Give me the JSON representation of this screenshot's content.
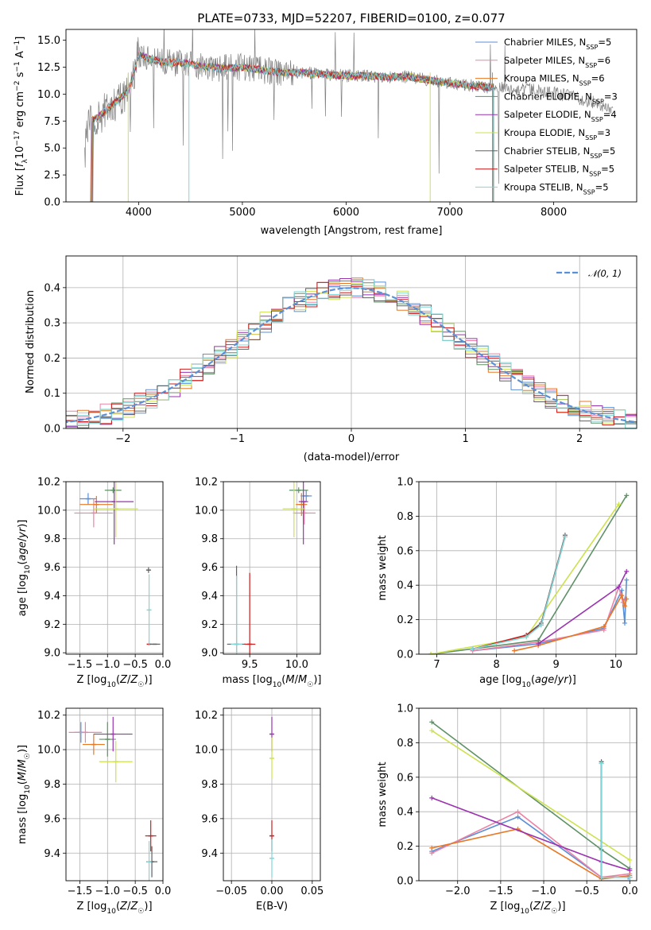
{
  "colors": {
    "Chabrier MILES": "#5b8fd6",
    "Salpeter MILES": "#ee82a4",
    "Kroupa MILES": "#e87826",
    "Chabrier ELODIE": "#5f9166",
    "Salpeter ELODIE": "#9b32b0",
    "Kroupa ELODIE": "#cde24e",
    "Chabrier STELIB": "#606060",
    "Salpeter STELIB": "#cc1f1f",
    "Kroupa STELIB": "#7fd6d8"
  },
  "chart_data": [
    {
      "id": "spectrum",
      "type": "line",
      "title": "PLATE=0733, MJD=52207, FIBERID=0100, z=0.077",
      "xlabel": "wavelength [Angstrom, rest frame]",
      "ylabel": "Flux [fλ10⁻¹⁷ erg cm⁻² s⁻¹ A⁻¹]",
      "xlim": [
        3300,
        8800
      ],
      "ylim": [
        0,
        16
      ],
      "xticks": [
        "4000",
        "5000",
        "6000",
        "7000",
        "8000"
      ],
      "yticks": [
        "0.0",
        "2.5",
        "5.0",
        "7.5",
        "10.0",
        "12.5",
        "15.0"
      ],
      "xtick_values": [
        4000,
        5000,
        6000,
        7000,
        8000
      ],
      "ytick_values": [
        0,
        2.5,
        5,
        7.5,
        10,
        12.5,
        15
      ],
      "legend_position": "right",
      "legend": [
        {
          "label": "Chabrier MILES, N",
          "sub": "SSP",
          "suffix": "=5"
        },
        {
          "label": "Salpeter MILES, N",
          "sub": "SSP",
          "suffix": "=6"
        },
        {
          "label": "Kroupa MILES, N",
          "sub": "SSP",
          "suffix": "=6"
        },
        {
          "label": "Chabrier ELODIE, N",
          "sub": "SSP",
          "suffix": "=3"
        },
        {
          "label": "Salpeter ELODIE, N",
          "sub": "SSP",
          "suffix": "=4"
        },
        {
          "label": "Kroupa ELODIE, N",
          "sub": "SSP",
          "suffix": "=3"
        },
        {
          "label": "Chabrier STELIB, N",
          "sub": "SSP",
          "suffix": "=5"
        },
        {
          "label": "Salpeter STELIB, N",
          "sub": "SSP",
          "suffix": "=5"
        },
        {
          "label": "Kroupa STELIB, N",
          "sub": "SSP",
          "suffix": "=5"
        }
      ],
      "continuum": {
        "x": [
          3500,
          3540,
          3600,
          3700,
          3800,
          3900,
          3950,
          4000,
          4100,
          4200,
          4400,
          4600,
          4800,
          5000,
          5200,
          5400,
          5600,
          5800,
          6000,
          6200,
          6400,
          6600,
          6800,
          7000,
          7200,
          7400,
          7600,
          7800,
          8000,
          8200,
          8400,
          8560
        ],
        "y": [
          6.5,
          7.5,
          7.8,
          8.6,
          9.4,
          10.3,
          11.8,
          13.7,
          13.3,
          13.0,
          12.9,
          12.6,
          12.4,
          12.5,
          12.2,
          12.0,
          12.0,
          11.8,
          11.7,
          11.7,
          11.6,
          11.6,
          11.3,
          11.0,
          10.8,
          10.6,
          10.5,
          10.4,
          10.1,
          9.7,
          9.2,
          8.6
        ]
      },
      "model_range": [
        3520,
        7420
      ],
      "data_range": [
        3480,
        8570
      ],
      "model_dips": [
        [
          4485,
          0
        ],
        [
          3900,
          0
        ],
        [
          6810,
          0
        ],
        [
          7410,
          0
        ]
      ]
    },
    {
      "id": "residual-histogram",
      "type": "histogram",
      "xlabel": "(data-model)/error",
      "ylabel": "Normed distribution",
      "xlim": [
        -2.5,
        2.5
      ],
      "ylim": [
        0,
        0.49
      ],
      "xticks": [
        "−2",
        "−1",
        "0",
        "1",
        "2"
      ],
      "yticks": [
        "0.0",
        "0.1",
        "0.2",
        "0.3",
        "0.4"
      ],
      "xtick_values": [
        -2,
        -1,
        0,
        1,
        2
      ],
      "ytick_values": [
        0,
        0.1,
        0.2,
        0.3,
        0.4
      ],
      "bin_width": 0.1,
      "legend": [
        {
          "label": "𝒩(0, 1)",
          "style": "dashed"
        }
      ],
      "legend_position": "top-right"
    },
    {
      "id": "age-vs-Z",
      "type": "errorbar",
      "xlabel": "Z [log10(Z/Z☉)]",
      "ylabel": "age  [log10(age/yr)]",
      "xlim": [
        -1.75,
        0.0
      ],
      "ylim": [
        8.99,
        10.2
      ],
      "xticks": [
        "−1.5",
        "−1.0",
        "−0.5",
        "0.0"
      ],
      "yticks": [
        "9.0",
        "9.2",
        "9.4",
        "9.6",
        "9.8",
        "10.0",
        "10.2"
      ],
      "xtick_values": [
        -1.5,
        -1.0,
        -0.5,
        0.0
      ],
      "ytick_values": [
        9.0,
        9.2,
        9.4,
        9.6,
        9.8,
        10.0,
        10.2
      ],
      "points": [
        {
          "series": "Chabrier MILES",
          "x": -1.35,
          "y": 10.08,
          "xerr": 0.15,
          "yerr": 0.04
        },
        {
          "series": "Salpeter MILES",
          "x": -1.25,
          "y": 9.98,
          "xerr": 0.35,
          "yerr": 0.1
        },
        {
          "series": "Kroupa MILES",
          "x": -1.2,
          "y": 10.04,
          "xerr": 0.3,
          "yerr": 0.06
        },
        {
          "series": "Chabrier ELODIE",
          "x": -0.9,
          "y": 10.14,
          "xerr": 0.15,
          "yerr": 0.02
        },
        {
          "series": "Salpeter ELODIE",
          "x": -0.88,
          "y": 10.06,
          "xerr": 0.35,
          "yerr": 0.3
        },
        {
          "series": "Kroupa ELODIE",
          "x": -0.85,
          "y": 10.01,
          "xerr": 0.4,
          "yerr": 0.2
        },
        {
          "series": "Chabrier STELIB",
          "x": -0.26,
          "y": 9.58,
          "xerr": 0.0,
          "yerr": 0.02
        },
        {
          "series": "Salpeter STELIB",
          "x": -0.25,
          "y": 9.06,
          "xerr": 0.0,
          "yerr": 0.0
        },
        {
          "series": "Kroupa STELIB",
          "x": -0.25,
          "y": 9.3,
          "xerr": 0.0,
          "yerr": 0.25
        },
        {
          "series": "Chabrier STELIB",
          "x": -0.15,
          "y": 9.06,
          "xerr": 0.1,
          "yerr": 0.0
        }
      ]
    },
    {
      "id": "age-vs-mass",
      "type": "errorbar",
      "xlabel": "mass [log10(M/M☉)]",
      "ylabel": "",
      "xlim": [
        9.22,
        10.25
      ],
      "ylim": [
        8.99,
        10.2
      ],
      "xticks": [
        "9.5",
        "10.0"
      ],
      "yticks": [
        "9.0",
        "9.2",
        "9.4",
        "9.6",
        "9.8",
        "10.0",
        "10.2"
      ],
      "xtick_values": [
        9.5,
        10.0
      ],
      "ytick_values": [
        9.0,
        9.2,
        9.4,
        9.6,
        9.8,
        10.0,
        10.2
      ],
      "points": [
        {
          "series": "Chabrier MILES",
          "x": 10.1,
          "y": 10.1,
          "xerr": 0.06,
          "yerr": 0.04
        },
        {
          "series": "Salpeter MILES",
          "x": 10.08,
          "y": 9.98,
          "xerr": 0.12,
          "yerr": 0.08
        },
        {
          "series": "Kroupa MILES",
          "x": 10.05,
          "y": 10.04,
          "xerr": 0.06,
          "yerr": 0.08
        },
        {
          "series": "Chabrier ELODIE",
          "x": 10.02,
          "y": 10.14,
          "xerr": 0.1,
          "yerr": 0.02
        },
        {
          "series": "Salpeter ELODIE",
          "x": 10.07,
          "y": 10.06,
          "xerr": 0.05,
          "yerr": 0.3
        },
        {
          "series": "Kroupa ELODIE",
          "x": 9.97,
          "y": 10.01,
          "xerr": 0.12,
          "yerr": 0.2
        },
        {
          "series": "Chabrier STELIB",
          "x": 9.36,
          "y": 9.06,
          "xerr": 0.1,
          "yerr": 0.55
        },
        {
          "series": "Salpeter STELIB",
          "x": 9.5,
          "y": 9.06,
          "xerr": 0.06,
          "yerr": 0.5
        },
        {
          "series": "Kroupa STELIB",
          "x": 9.36,
          "y": 9.06,
          "xerr": 0.06,
          "yerr": 0.48
        }
      ]
    },
    {
      "id": "mass-weight-vs-age",
      "type": "line",
      "xlabel": "age  [log10(age/yr)]",
      "ylabel": "mass weight",
      "xlim": [
        6.7,
        10.35
      ],
      "ylim": [
        0,
        1
      ],
      "xticks": [
        "7",
        "8",
        "9",
        "10"
      ],
      "yticks": [
        "0.0",
        "0.2",
        "0.4",
        "0.6",
        "0.8",
        "1.0"
      ],
      "xtick_values": [
        7,
        8,
        9,
        10
      ],
      "ytick_values": [
        0,
        0.2,
        0.4,
        0.6,
        0.8,
        1.0
      ],
      "series": [
        {
          "name": "Chabrier MILES",
          "x": [
            7.6,
            8.7,
            9.8,
            10.1,
            10.15,
            10.18
          ],
          "y": [
            0.02,
            0.06,
            0.15,
            0.37,
            0.18,
            0.43
          ]
        },
        {
          "name": "Salpeter MILES",
          "x": [
            7.6,
            8.7,
            9.8,
            10.05,
            10.12,
            10.15
          ],
          "y": [
            0.02,
            0.07,
            0.14,
            0.39,
            0.3,
            0.32
          ]
        },
        {
          "name": "Kroupa MILES",
          "x": [
            8.3,
            8.7,
            9.8,
            10.1,
            10.15,
            10.18
          ],
          "y": [
            0.02,
            0.05,
            0.16,
            0.34,
            0.28,
            0.32
          ]
        },
        {
          "name": "Chabrier ELODIE",
          "x": [
            6.9,
            8.7,
            10.18
          ],
          "y": [
            0.0,
            0.08,
            0.92
          ]
        },
        {
          "name": "Salpeter ELODIE",
          "x": [
            8.7,
            10.05,
            10.18
          ],
          "y": [
            0.06,
            0.39,
            0.48
          ]
        },
        {
          "name": "Kroupa ELODIE",
          "x": [
            6.9,
            8.5,
            10.05
          ],
          "y": [
            0.0,
            0.1,
            0.87
          ]
        },
        {
          "name": "Chabrier STELIB",
          "x": [
            7.6,
            8.5,
            8.75,
            9.15
          ],
          "y": [
            0.03,
            0.11,
            0.18,
            0.69
          ]
        },
        {
          "name": "Salpeter STELIB",
          "x": [
            7.6,
            8.5,
            8.75,
            9.15
          ],
          "y": [
            0.03,
            0.11,
            0.17,
            0.68
          ]
        },
        {
          "name": "Kroupa STELIB",
          "x": [
            7.6,
            8.5,
            8.75,
            9.15
          ],
          "y": [
            0.03,
            0.1,
            0.17,
            0.68
          ]
        }
      ]
    },
    {
      "id": "mass-vs-Z",
      "type": "errorbar",
      "xlabel": "Z [log10(Z/Z☉)]",
      "ylabel": "mass [log10(M/M☉)]",
      "xlim": [
        -1.75,
        0.0
      ],
      "ylim": [
        9.24,
        10.24
      ],
      "xticks": [
        "−1.5",
        "−1.0",
        "−0.5",
        "0.0"
      ],
      "yticks": [
        "9.4",
        "9.6",
        "9.8",
        "10.0",
        "10.2"
      ],
      "xtick_values": [
        -1.5,
        -1.0,
        -0.5,
        0.0
      ],
      "ytick_values": [
        9.4,
        9.6,
        9.8,
        10.0,
        10.2
      ],
      "points": [
        {
          "series": "Chabrier MILES",
          "x": -1.48,
          "y": 10.1,
          "xerr": 0.12,
          "yerr": 0.06
        },
        {
          "series": "Salpeter MILES",
          "x": -1.4,
          "y": 10.1,
          "xerr": 0.3,
          "yerr": 0.06
        },
        {
          "series": "Kroupa MILES",
          "x": -1.25,
          "y": 10.03,
          "xerr": 0.2,
          "yerr": 0.06
        },
        {
          "series": "Chabrier ELODIE",
          "x": -1.0,
          "y": 10.06,
          "xerr": 0.15,
          "yerr": 0.1
        },
        {
          "series": "Salpeter ELODIE",
          "x": -0.9,
          "y": 10.09,
          "xerr": 0.35,
          "yerr": 0.1
        },
        {
          "series": "Kroupa ELODIE",
          "x": -0.85,
          "y": 9.93,
          "xerr": 0.3,
          "yerr": 0.12
        },
        {
          "series": "Chabrier STELIB",
          "x": -0.2,
          "y": 9.35,
          "xerr": 0.1,
          "yerr": 0.09
        },
        {
          "series": "Salpeter STELIB",
          "x": -0.22,
          "y": 9.5,
          "xerr": 0.1,
          "yerr": 0.09
        },
        {
          "series": "Kroupa STELIB",
          "x": -0.25,
          "y": 9.35,
          "xerr": 0.0,
          "yerr": 0.12
        }
      ]
    },
    {
      "id": "mass-vs-ebv",
      "type": "errorbar",
      "xlabel": "E(B-V)",
      "ylabel": "",
      "xlim": [
        -0.06,
        0.06
      ],
      "ylim": [
        9.24,
        10.24
      ],
      "xticks": [
        "−0.05",
        "0.00",
        "0.05"
      ],
      "yticks": [
        "9.4",
        "9.6",
        "9.8",
        "10.0",
        "10.2"
      ],
      "xtick_values": [
        -0.05,
        0.0,
        0.05
      ],
      "ytick_values": [
        9.4,
        9.6,
        9.8,
        10.0,
        10.2
      ],
      "points": [
        {
          "series": "Salpeter ELODIE",
          "x": 0.0,
          "y": 10.09,
          "xerr": 0.0,
          "yerr": 0.1
        },
        {
          "series": "Kroupa ELODIE",
          "x": 0.0,
          "y": 9.95,
          "xerr": 0.0,
          "yerr": 0.12
        },
        {
          "series": "Salpeter STELIB",
          "x": 0.0,
          "y": 9.5,
          "xerr": 0.0,
          "yerr": 0.09
        },
        {
          "series": "Kroupa STELIB",
          "x": 0.0,
          "y": 9.37,
          "xerr": 0.0,
          "yerr": 0.11
        }
      ]
    },
    {
      "id": "mass-weight-vs-Z",
      "type": "line",
      "xlabel": "Z [log10(Z/Z☉)]",
      "ylabel": "mass weight",
      "xlim": [
        -2.45,
        0.08
      ],
      "ylim": [
        0,
        1
      ],
      "xticks": [
        "−2.0",
        "−1.5",
        "−1.0",
        "−0.5",
        "0.0"
      ],
      "yticks": [
        "0.0",
        "0.2",
        "0.4",
        "0.6",
        "0.8",
        "1.0"
      ],
      "xtick_values": [
        -2.0,
        -1.5,
        -1.0,
        -0.5,
        0.0
      ],
      "ytick_values": [
        0,
        0.2,
        0.4,
        0.6,
        0.8,
        1.0
      ],
      "series": [
        {
          "name": "Chabrier MILES",
          "x": [
            -2.3,
            -1.3,
            -0.33,
            -0.02
          ],
          "y": [
            0.17,
            0.37,
            0.02,
            0.02
          ]
        },
        {
          "name": "Salpeter MILES",
          "x": [
            -2.3,
            -1.3,
            -0.33,
            0.0
          ],
          "y": [
            0.16,
            0.4,
            0.02,
            0.04
          ]
        },
        {
          "name": "Kroupa MILES",
          "x": [
            -2.3,
            -1.3,
            -0.33,
            0.0
          ],
          "y": [
            0.19,
            0.3,
            0.01,
            0.03
          ]
        },
        {
          "name": "Chabrier ELODIE",
          "x": [
            -2.3,
            -0.33,
            0.0
          ],
          "y": [
            0.92,
            0.18,
            0.07
          ]
        },
        {
          "name": "Salpeter ELODIE",
          "x": [
            -2.3,
            -0.33,
            0.0
          ],
          "y": [
            0.48,
            0.11,
            0.06
          ]
        },
        {
          "name": "Kroupa ELODIE",
          "x": [
            -2.3,
            0.0
          ],
          "y": [
            0.87,
            0.12
          ]
        },
        {
          "name": "Chabrier STELIB",
          "x": [
            -0.33,
            -0.33,
            0.0
          ],
          "y": [
            0.69,
            0.02,
            0.02
          ]
        },
        {
          "name": "Salpeter STELIB",
          "x": [
            -0.33,
            -0.33,
            0.0
          ],
          "y": [
            0.68,
            0.02,
            0.02
          ]
        },
        {
          "name": "Kroupa STELIB",
          "x": [
            -0.33,
            -0.33,
            0.0
          ],
          "y": [
            0.68,
            0.02,
            0.02
          ]
        }
      ]
    }
  ]
}
